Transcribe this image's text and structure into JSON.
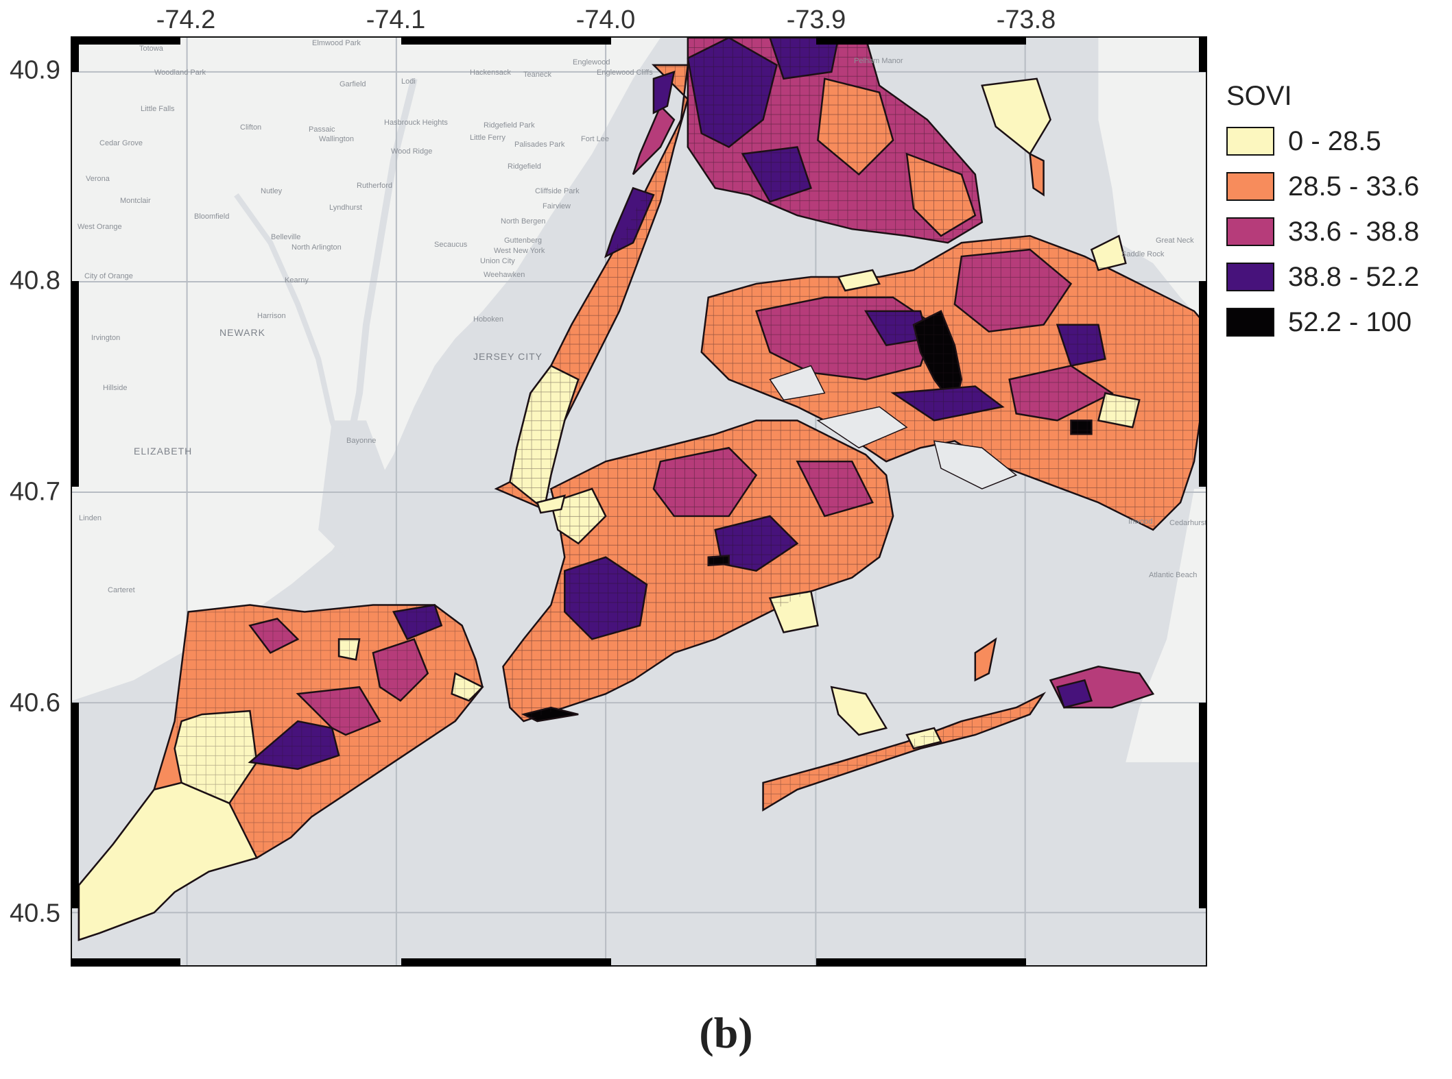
{
  "map": {
    "axis_x_ticks": [
      "-74.2",
      "-74.1",
      "-74.0",
      "-73.9",
      "-73.8"
    ],
    "axis_y_ticks": [
      "40.9",
      "40.8",
      "40.7",
      "40.6",
      "40.5"
    ],
    "basemap_places": [
      "Totowa",
      "Elmwood Park",
      "Woodland Park",
      "Garfield",
      "Lodi",
      "Hackensack",
      "Teaneck",
      "Englewood",
      "Englewood Cliffs",
      "Pelham Manor",
      "Little Falls",
      "Clifton",
      "Passaic",
      "Wallington",
      "Hasbrouck Heights",
      "Ridgefield Park",
      "Little Ferry",
      "Palisades Park",
      "Fort Lee",
      "Cedar Grove",
      "Wood Ridge",
      "Ridgefield",
      "Verona",
      "Nutley",
      "Rutherford",
      "Cliffside Park",
      "Montclair",
      "Lyndhurst",
      "Fairview",
      "Bloomfield",
      "North Bergen",
      "West Orange",
      "Belleville",
      "North Arlington",
      "Secaucus",
      "Guttenberg",
      "West New York",
      "Union City",
      "Weehawken",
      "City of Orange",
      "Kearny",
      "Harrison",
      "Hoboken",
      "Irvington",
      "NEWARK",
      "JERSEY CITY",
      "Hillside",
      "ELIZABETH",
      "Bayonne",
      "Linden",
      "Carteret",
      "Great Neck",
      "Saddle Rock",
      "Inwood",
      "Cedarhurst",
      "Atlantic Beach"
    ]
  },
  "legend": {
    "title": "SOVI",
    "classes": [
      {
        "label": "0 - 28.5",
        "color": "#fcf7bf"
      },
      {
        "label": "28.5 - 33.6",
        "color": "#f78c5c"
      },
      {
        "label": "33.6 - 38.8",
        "color": "#b63c7a"
      },
      {
        "label": "38.8 - 52.2",
        "color": "#47127b"
      },
      {
        "label": "52.2 - 100",
        "color": "#050305"
      }
    ]
  },
  "caption": "(b)"
}
